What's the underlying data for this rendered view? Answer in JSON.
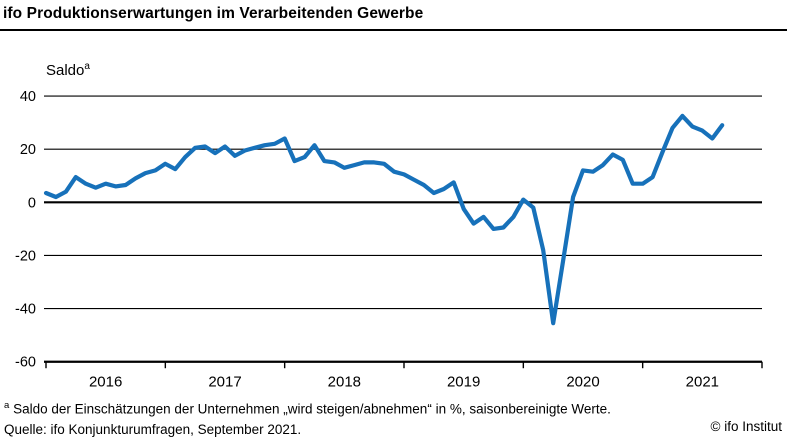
{
  "header": {
    "title": "ifo Produktionserwartungen im Verarbeitenden Gewerbe"
  },
  "chart_data": {
    "type": "line",
    "title": "ifo Produktionserwartungen im Verarbeitenden Gewerbe",
    "ylabel": "Saldo",
    "ylabel_sup": "a",
    "line_color": "#1771ba",
    "axis_color": "#000000",
    "grid": "horizontal",
    "legend_position": "none",
    "ylim": [
      -60,
      40
    ],
    "yticks": [
      40,
      20,
      0,
      -20,
      -40,
      -60
    ],
    "x_year_ticks": [
      "2016",
      "2017",
      "2018",
      "2019",
      "2020",
      "2021"
    ],
    "x_range_months": [
      "2016-01",
      "2021-09"
    ],
    "months": [
      "2016-01",
      "2016-02",
      "2016-03",
      "2016-04",
      "2016-05",
      "2016-06",
      "2016-07",
      "2016-08",
      "2016-09",
      "2016-10",
      "2016-11",
      "2016-12",
      "2017-01",
      "2017-02",
      "2017-03",
      "2017-04",
      "2017-05",
      "2017-06",
      "2017-07",
      "2017-08",
      "2017-09",
      "2017-10",
      "2017-11",
      "2017-12",
      "2018-01",
      "2018-02",
      "2018-03",
      "2018-04",
      "2018-05",
      "2018-06",
      "2018-07",
      "2018-08",
      "2018-09",
      "2018-10",
      "2018-11",
      "2018-12",
      "2019-01",
      "2019-02",
      "2019-03",
      "2019-04",
      "2019-05",
      "2019-06",
      "2019-07",
      "2019-08",
      "2019-09",
      "2019-10",
      "2019-11",
      "2019-12",
      "2020-01",
      "2020-02",
      "2020-03",
      "2020-04",
      "2020-05",
      "2020-06",
      "2020-07",
      "2020-08",
      "2020-09",
      "2020-10",
      "2020-11",
      "2020-12",
      "2021-01",
      "2021-02",
      "2021-03",
      "2021-04",
      "2021-05",
      "2021-06",
      "2021-07",
      "2021-08",
      "2021-09"
    ],
    "values": [
      3.5,
      2,
      4,
      9.5,
      7,
      5.5,
      7,
      6,
      6.5,
      9,
      11,
      12,
      14.5,
      12.5,
      17,
      20.5,
      21,
      18.5,
      21,
      17.5,
      19.5,
      20.5,
      21.5,
      22,
      24,
      15.5,
      17,
      21.5,
      15.5,
      15,
      13,
      14,
      15,
      15,
      14.5,
      11.5,
      10.5,
      8.5,
      6.5,
      3.5,
      5,
      7.5,
      -2.5,
      -8,
      -5.5,
      -10,
      -9.5,
      -5.5,
      1,
      -2,
      -18,
      -45.5,
      -22,
      2,
      12,
      11.5,
      14,
      18,
      16,
      7,
      7,
      9.5,
      19,
      28,
      32.5,
      28.5,
      27,
      24,
      29
    ]
  },
  "footer": {
    "footnote_sup": "a",
    "footnote": "Saldo der Einschätzungen der Unternehmen „wird steigen/abnehmen“ in %, saisonbereinigte Werte.",
    "source": "Quelle: ifo Konjunkturumfragen, September 2021.",
    "copyright": "© ifo Institut"
  }
}
